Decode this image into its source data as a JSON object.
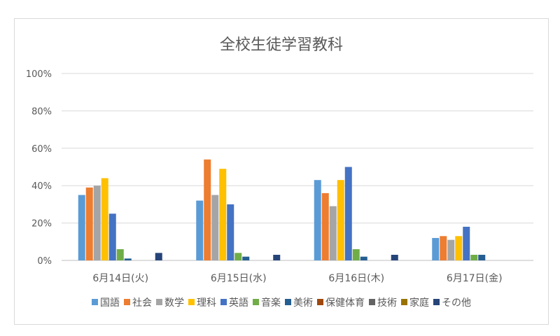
{
  "chart_data": {
    "type": "bar",
    "title": "全校生徒学習教科",
    "categories": [
      "6月14日(火)",
      "6月15日(水)",
      "6月16日(木)",
      "6月17日(金)"
    ],
    "y_ticks": [
      "0%",
      "20%",
      "40%",
      "60%",
      "80%",
      "100%"
    ],
    "ylim": [
      0,
      100
    ],
    "y_unit": "%",
    "grid": true,
    "legend_position": "bottom",
    "series": [
      {
        "name": "国語",
        "color": "#5B9BD5",
        "values": [
          35,
          32,
          43,
          12
        ]
      },
      {
        "name": "社会",
        "color": "#ED7D31",
        "values": [
          39,
          54,
          36,
          13
        ]
      },
      {
        "name": "数学",
        "color": "#A5A5A5",
        "values": [
          40,
          35,
          29,
          11
        ]
      },
      {
        "name": "理科",
        "color": "#FFC000",
        "values": [
          44,
          49,
          43,
          13
        ]
      },
      {
        "name": "英語",
        "color": "#4472C4",
        "values": [
          25,
          30,
          50,
          18
        ]
      },
      {
        "name": "音楽",
        "color": "#70AD47",
        "values": [
          6,
          4,
          6,
          3
        ]
      },
      {
        "name": "美術",
        "color": "#255E91",
        "values": [
          1,
          2,
          2,
          3
        ]
      },
      {
        "name": "保健体育",
        "color": "#9E480E",
        "values": [
          0,
          0,
          0,
          0
        ]
      },
      {
        "name": "技術",
        "color": "#636363",
        "values": [
          0,
          0,
          0,
          0
        ]
      },
      {
        "name": "家庭",
        "color": "#997300",
        "values": [
          0,
          0,
          0,
          0
        ]
      },
      {
        "name": "その他",
        "color": "#264478",
        "values": [
          4,
          3,
          3,
          0
        ]
      }
    ]
  }
}
